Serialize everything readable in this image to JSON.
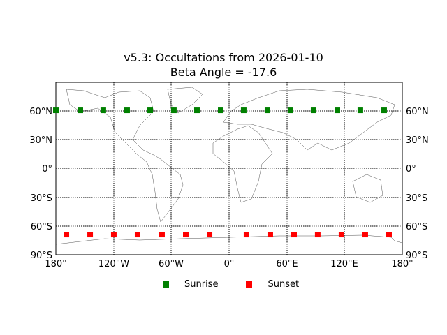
{
  "chart_data": {
    "type": "scatter",
    "title": "v5.3: Occultations from 2026-01-10",
    "subtitle": "Beta Angle = -17.6",
    "xlabel": "",
    "ylabel": "",
    "projection": "equirectangular world map (cylindrical) with coastlines",
    "xlim": [
      -180,
      180
    ],
    "ylim": [
      -90,
      90
    ],
    "grid": true,
    "x_ticks": [
      "180°",
      "120°W",
      "60°W",
      "0°",
      "60°E",
      "120°E",
      "180°"
    ],
    "y_ticks": [
      "90°S",
      "60°S",
      "30°S",
      "0°",
      "30°N",
      "60°N"
    ],
    "legend_position": "bottom center",
    "series": [
      {
        "name": "Sunrise",
        "color": "#008000",
        "marker": "square",
        "lon": [
          -180,
          -154.6,
          -130.7,
          -106,
          -82,
          -57.4,
          -33.4,
          -8.7,
          15.2,
          39.9,
          63.8,
          87.8,
          112.5,
          136.4,
          161.1
        ],
        "lat": [
          60.8,
          60.8,
          60.8,
          60.8,
          60.8,
          60.8,
          60.8,
          60.8,
          60.8,
          60.8,
          60.8,
          60.8,
          60.8,
          60.8,
          60.8
        ]
      },
      {
        "name": "Sunset",
        "color": "#ff0000",
        "marker": "square",
        "lon": [
          -169.1,
          -144.4,
          -119.8,
          -95.1,
          -69.7,
          -45,
          -20.3,
          18.1,
          42.8,
          67.5,
          92.1,
          116.8,
          141.5,
          166.2
        ],
        "lat": [
          -68.9,
          -68.9,
          -68.9,
          -68.9,
          -68.9,
          -68.9,
          -68.9,
          -68.9,
          -68.9,
          -68.9,
          -68.9,
          -68.9,
          -68.9,
          -68.9
        ]
      }
    ]
  },
  "legend": {
    "sunrise": "Sunrise",
    "sunset": "Sunset"
  }
}
